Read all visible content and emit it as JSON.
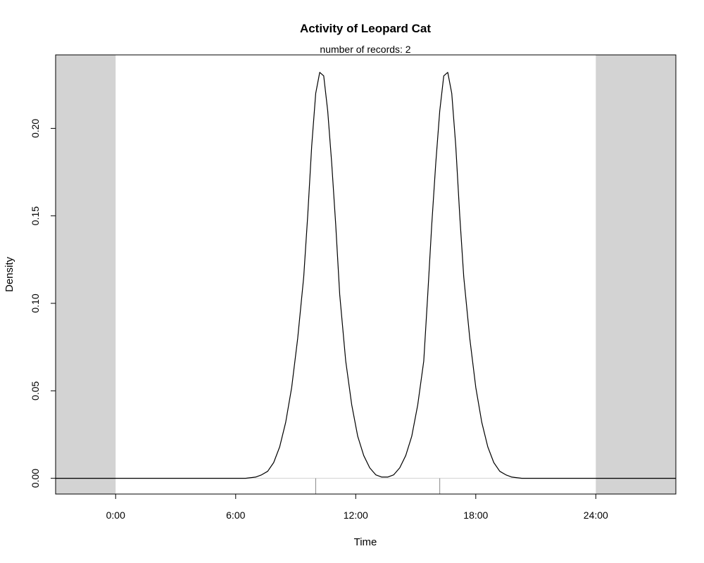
{
  "chart_data": {
    "type": "line",
    "title": "Activity of Leopard Cat",
    "subtitle": "number of records: 2",
    "xlabel": "Time",
    "ylabel": "Density",
    "xlim": [
      -3,
      28
    ],
    "ylim": [
      -0.009,
      0.242
    ],
    "x_ticks": [
      0,
      6,
      12,
      18,
      24
    ],
    "x_tick_labels": [
      "0:00",
      "6:00",
      "12:00",
      "18:00",
      "24:00"
    ],
    "y_ticks": [
      0.0,
      0.05,
      0.1,
      0.15,
      0.2
    ],
    "y_tick_labels": [
      "0.00",
      "0.05",
      "0.10",
      "0.15",
      "0.20"
    ],
    "shaded_ranges": [
      [
        -4,
        0
      ],
      [
        24,
        29
      ]
    ],
    "records": [
      10.0,
      16.2
    ],
    "series": [
      {
        "points": [
          [
            -3.0,
            0.0
          ],
          [
            6.5,
            0.0
          ],
          [
            7.0,
            0.0007
          ],
          [
            7.3,
            0.002
          ],
          [
            7.6,
            0.004
          ],
          [
            7.9,
            0.009
          ],
          [
            8.2,
            0.018
          ],
          [
            8.5,
            0.032
          ],
          [
            8.8,
            0.052
          ],
          [
            9.1,
            0.08
          ],
          [
            9.4,
            0.115
          ],
          [
            9.6,
            0.15
          ],
          [
            9.8,
            0.19
          ],
          [
            10.0,
            0.22
          ],
          [
            10.2,
            0.232
          ],
          [
            10.4,
            0.23
          ],
          [
            10.6,
            0.21
          ],
          [
            10.8,
            0.18
          ],
          [
            11.0,
            0.145
          ],
          [
            11.2,
            0.105
          ],
          [
            11.5,
            0.067
          ],
          [
            11.8,
            0.042
          ],
          [
            12.1,
            0.024
          ],
          [
            12.4,
            0.013
          ],
          [
            12.7,
            0.006
          ],
          [
            13.0,
            0.002
          ],
          [
            13.3,
            0.0007
          ],
          [
            13.6,
            0.0007
          ],
          [
            13.9,
            0.002
          ],
          [
            14.2,
            0.006
          ],
          [
            14.5,
            0.013
          ],
          [
            14.8,
            0.024
          ],
          [
            15.1,
            0.042
          ],
          [
            15.4,
            0.067
          ],
          [
            15.6,
            0.105
          ],
          [
            15.8,
            0.145
          ],
          [
            16.0,
            0.18
          ],
          [
            16.2,
            0.21
          ],
          [
            16.4,
            0.23
          ],
          [
            16.6,
            0.232
          ],
          [
            16.8,
            0.22
          ],
          [
            17.0,
            0.19
          ],
          [
            17.2,
            0.15
          ],
          [
            17.4,
            0.115
          ],
          [
            17.7,
            0.08
          ],
          [
            18.0,
            0.052
          ],
          [
            18.3,
            0.032
          ],
          [
            18.6,
            0.018
          ],
          [
            18.9,
            0.009
          ],
          [
            19.2,
            0.004
          ],
          [
            19.5,
            0.002
          ],
          [
            19.8,
            0.0007
          ],
          [
            20.3,
            0.0
          ],
          [
            28.0,
            0.0
          ]
        ]
      }
    ]
  },
  "colors": {
    "shade": "#d3d3d3",
    "line": "#000000",
    "baseline": "#666666",
    "baseline_light": "#d0d0d0",
    "rug": "#888888"
  }
}
